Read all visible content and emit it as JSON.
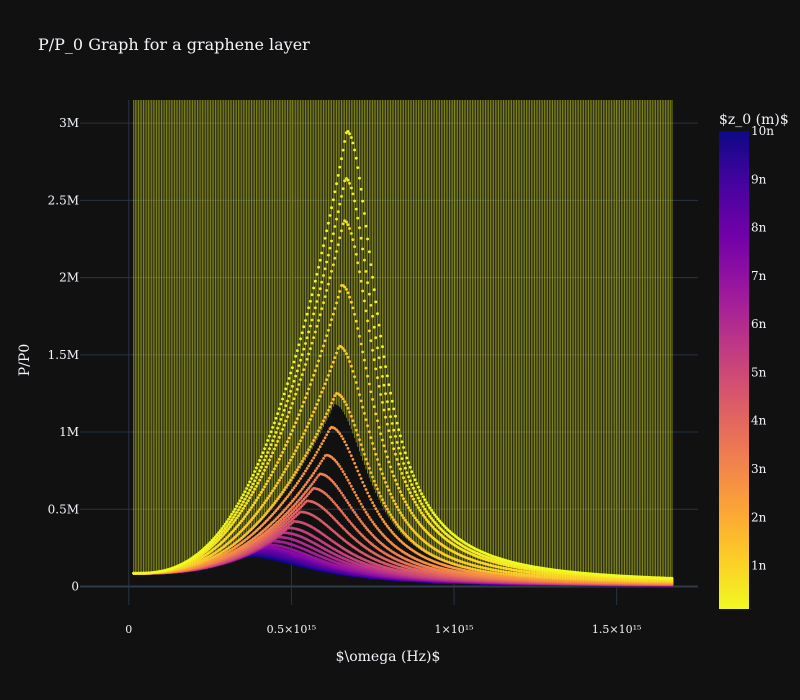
{
  "chart_data": {
    "type": "scatter",
    "title": "P/P_0 Graph for a graphene layer",
    "xlabel": "$\\omega (Hz)$",
    "ylabel": "P/P0",
    "xlim": [
      -150000000000000.0,
      1750000000000000.0
    ],
    "ylim": [
      -120000.0,
      3150000.0
    ],
    "x_ticks": [
      {
        "value": 0,
        "label": "0"
      },
      {
        "value": 500000000000000.0,
        "label": "0.5×10¹⁵"
      },
      {
        "value": 1000000000000000.0,
        "label": "1×10¹⁵"
      },
      {
        "value": 1500000000000000.0,
        "label": "1.5×10¹⁵"
      }
    ],
    "y_ticks": [
      {
        "value": 0,
        "label": "0"
      },
      {
        "value": 500000,
        "label": "0.5M"
      },
      {
        "value": 1000000,
        "label": "1M"
      },
      {
        "value": 1500000,
        "label": "1.5M"
      },
      {
        "value": 2000000,
        "label": "2M"
      },
      {
        "value": 2500000,
        "label": "2.5M"
      },
      {
        "value": 3000000,
        "label": "3M"
      }
    ],
    "grid": true,
    "x_range_data": [
      15000000000000.0,
      1670000000000000.0
    ],
    "series": [
      {
        "z0": 1e-10,
        "peak_x": 670000000000000.0,
        "peak_y": 2950000
      },
      {
        "z0": 1e-09,
        "peak_x": 660000000000000.0,
        "peak_y": 2300000
      },
      {
        "z0": 2e-09,
        "peak_x": 640000000000000.0,
        "peak_y": 1300000
      },
      {
        "z0": 3e-09,
        "peak_x": 600000000000000.0,
        "peak_y": 800000
      },
      {
        "z0": 5e-09,
        "peak_x": 500000000000000.0,
        "peak_y": 400000
      },
      {
        "z0": 7e-09,
        "peak_x": 420000000000000.0,
        "peak_y": 260000
      },
      {
        "z0": 1e-08,
        "peak_x": 360000000000000.0,
        "peak_y": 200000
      }
    ],
    "start_value": 85000,
    "end_value_top": 15000,
    "colorbar": {
      "title": "$z_0 (m)$",
      "range": [
        1e-10,
        1e-08
      ],
      "ticks": [
        {
          "value": 1e-09,
          "label": "1n"
        },
        {
          "value": 2e-09,
          "label": "2n"
        },
        {
          "value": 3e-09,
          "label": "3n"
        },
        {
          "value": 4e-09,
          "label": "4n"
        },
        {
          "value": 5e-09,
          "label": "5n"
        },
        {
          "value": 6e-09,
          "label": "6n"
        },
        {
          "value": 7e-09,
          "label": "7n"
        },
        {
          "value": 8e-09,
          "label": "8n"
        },
        {
          "value": 9e-09,
          "label": "9n"
        },
        {
          "value": 1e-08,
          "label": "10n"
        }
      ],
      "colors": [
        "#f0f921",
        "#fdca26",
        "#fb9f3a",
        "#ed7953",
        "#d8576b",
        "#bd3786",
        "#9c179e",
        "#7201a8",
        "#46039f",
        "#0d0887"
      ]
    }
  }
}
